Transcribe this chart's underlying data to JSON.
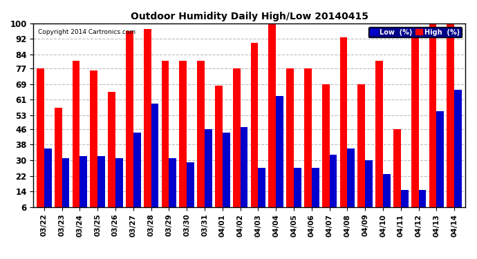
{
  "title": "Outdoor Humidity Daily High/Low 20140415",
  "copyright": "Copyright 2014 Cartronics.com",
  "categories": [
    "03/22",
    "03/23",
    "03/24",
    "03/25",
    "03/26",
    "03/27",
    "03/28",
    "03/29",
    "03/30",
    "03/31",
    "04/01",
    "04/02",
    "04/03",
    "04/04",
    "04/05",
    "04/06",
    "04/07",
    "04/08",
    "04/09",
    "04/10",
    "04/11",
    "04/12",
    "04/13",
    "04/14"
  ],
  "high": [
    77,
    57,
    81,
    76,
    65,
    96,
    97,
    81,
    81,
    81,
    68,
    77,
    90,
    100,
    77,
    77,
    69,
    93,
    69,
    81,
    46,
    96,
    100,
    100
  ],
  "low": [
    36,
    31,
    32,
    32,
    31,
    44,
    59,
    31,
    29,
    46,
    44,
    47,
    26,
    63,
    26,
    26,
    33,
    36,
    30,
    23,
    15,
    15,
    55,
    66
  ],
  "high_color": "#ff0000",
  "low_color": "#0000cc",
  "bg_color": "#ffffff",
  "plot_bg": "#ffffff",
  "grid_color": "#bbbbbb",
  "ylim": [
    6,
    100
  ],
  "yticks": [
    6,
    14,
    22,
    30,
    38,
    46,
    53,
    61,
    69,
    77,
    84,
    92,
    100
  ],
  "bar_width": 0.42,
  "legend_low_label": "Low  (%)",
  "legend_high_label": "High  (%)"
}
